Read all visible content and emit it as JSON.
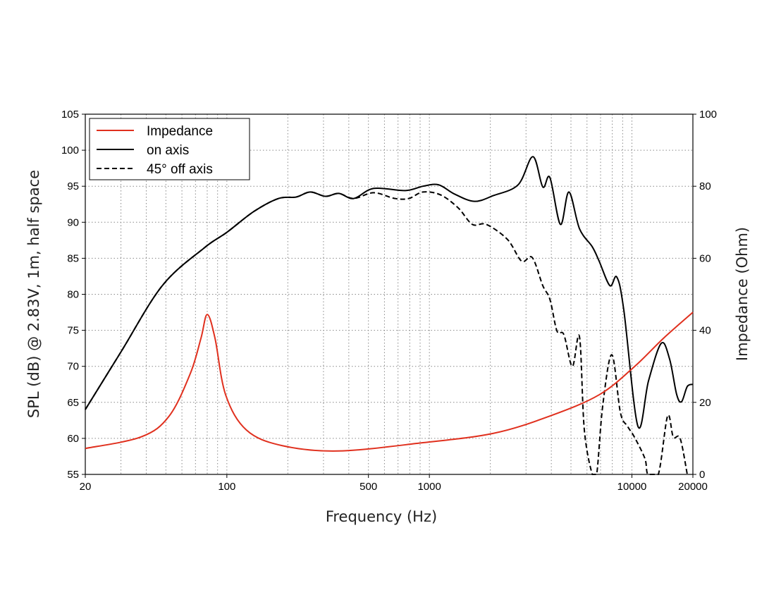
{
  "chart_data": {
    "type": "line",
    "title": "",
    "xlabel": "Frequency (Hz)",
    "ylabel": "SPL (dB) @ 2.83V, 1m, half space",
    "y2label": "Impedance (Ohm)",
    "xscale": "log",
    "xlim": [
      20,
      20000
    ],
    "ylim": [
      55,
      105
    ],
    "y2lim": [
      0,
      100
    ],
    "grid": true,
    "legend_position": "top-left",
    "x_ticks": [
      20,
      100,
      500,
      1000,
      10000,
      20000
    ],
    "x_tick_labels": [
      "20",
      "100",
      "500",
      "1000",
      "10000",
      "20000"
    ],
    "y_ticks": [
      "55",
      "60",
      "65",
      "70",
      "75",
      "80",
      "85",
      "90",
      "95",
      "100",
      "105"
    ],
    "y2_ticks": [
      "0",
      "20",
      "40",
      "60",
      "80",
      "100"
    ],
    "series": [
      {
        "name": "Impedance",
        "axis": "right",
        "color": "#e0301e",
        "style": "solid",
        "x": [
          20,
          37.7,
          51.9,
          66,
          74.5,
          80,
          87.4,
          98.6,
          125,
          187,
          355,
          929,
          2070,
          3936,
          6890,
          10280,
          14320,
          20000
        ],
        "y": [
          7.2,
          10.4,
          16.2,
          28.0,
          37.8,
          44.4,
          37.8,
          22.1,
          12.3,
          8.0,
          6.5,
          8.8,
          11.4,
          16.2,
          22.1,
          29.9,
          37.8,
          45.0
        ]
      },
      {
        "name": "on axis",
        "axis": "left",
        "color": "#000000",
        "style": "solid",
        "x": [
          20,
          30,
          48,
          77,
          100,
          136,
          180,
          220,
          258,
          307,
          357,
          423,
          531,
          761,
          929,
          1109,
          1334,
          1668,
          2070,
          2742,
          3245,
          3630,
          3936,
          4436,
          4886,
          5510,
          6370,
          6890,
          7780,
          8420,
          9120,
          10700,
          12080,
          13960,
          15350,
          16630,
          17590,
          18760,
          20000
        ],
        "y": [
          64.0,
          72.0,
          81.2,
          86.4,
          88.6,
          91.5,
          93.3,
          93.5,
          94.2,
          93.6,
          94.0,
          93.3,
          94.7,
          94.4,
          95.0,
          95.2,
          93.9,
          92.9,
          93.7,
          95.2,
          99.1,
          94.9,
          96.2,
          89.7,
          94.2,
          89.1,
          86.6,
          84.6,
          81.2,
          82.4,
          77.8,
          61.7,
          68.0,
          73.2,
          71.0,
          66.1,
          65.1,
          67.2,
          67.5
        ]
      },
      {
        "name": "45° off axis",
        "axis": "left",
        "color": "#000000",
        "style": "dashed",
        "x": [
          20,
          30,
          48,
          77,
          100,
          136,
          180,
          220,
          258,
          307,
          357,
          423,
          531,
          675,
          792,
          929,
          1135,
          1387,
          1630,
          1911,
          2432,
          2853,
          3220,
          3630,
          3936,
          4266,
          4613,
          5080,
          5510,
          5820,
          6370,
          6700,
          7180,
          7960,
          8770,
          9500,
          10280,
          11590,
          12000,
          13500,
          15000,
          16000,
          17300,
          18760
        ],
        "y": [
          64.0,
          72.0,
          81.2,
          86.4,
          88.6,
          91.5,
          93.3,
          93.5,
          94.2,
          93.6,
          94.0,
          93.3,
          94.1,
          93.3,
          93.3,
          94.2,
          93.8,
          92.0,
          89.7,
          89.7,
          87.6,
          84.6,
          85.1,
          81.2,
          79.3,
          74.9,
          74.4,
          70.0,
          74.1,
          61.2,
          55,
          55,
          64.6,
          71.6,
          63.6,
          61.7,
          60.2,
          57.2,
          55,
          55,
          63.1,
          60.2,
          60.0,
          55
        ]
      }
    ]
  }
}
